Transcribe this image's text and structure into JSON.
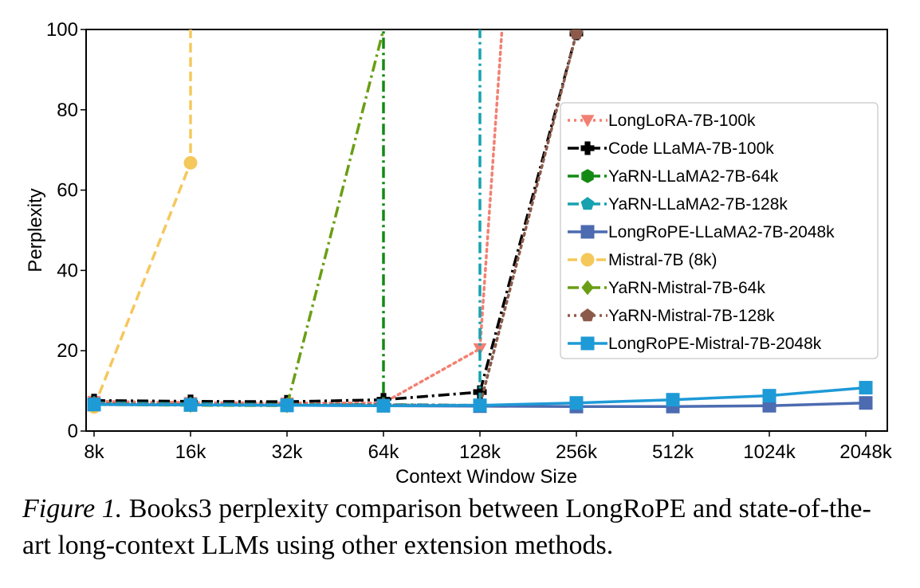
{
  "chart_data": {
    "type": "line",
    "title": "",
    "xlabel": "Context Window Size",
    "ylabel": "Perplexity",
    "x_scale": "log2",
    "categories": [
      "8k",
      "16k",
      "32k",
      "64k",
      "128k",
      "256k",
      "512k",
      "1024k",
      "2048k"
    ],
    "x_values_k": [
      8,
      16,
      32,
      64,
      128,
      256,
      512,
      1024,
      2048
    ],
    "ylim": [
      0,
      100
    ],
    "yticks": [
      0,
      20,
      40,
      60,
      80,
      100
    ],
    "grid": false,
    "legend_position": "center-right",
    "series": [
      {
        "name": "LongLoRA-7B-100k",
        "color": "#f28072",
        "linestyle": "dotted",
        "marker": "triangle-down",
        "x": [
          8,
          16,
          32,
          64,
          128,
          150
        ],
        "y": [
          7.4,
          7.1,
          7.0,
          7.0,
          20.5,
          100
        ]
      },
      {
        "name": "Code LLaMA-7B-100k",
        "color": "#000000",
        "linestyle": "dashdot",
        "marker": "plus",
        "x": [
          8,
          16,
          32,
          64,
          128,
          256
        ],
        "y": [
          7.6,
          7.4,
          7.3,
          7.8,
          9.7,
          99
        ]
      },
      {
        "name": "YaRN-LLaMA2-7B-64k",
        "color": "#138a13",
        "linestyle": "dashdot",
        "marker": "hexagon",
        "x": [
          8,
          16,
          32,
          64,
          64
        ],
        "y": [
          6.9,
          6.7,
          6.6,
          6.5,
          100
        ]
      },
      {
        "name": "YaRN-LLaMA2-7B-128k",
        "color": "#17a2b0",
        "linestyle": "dashdot",
        "marker": "pentagon",
        "x": [
          8,
          16,
          32,
          64,
          128,
          128
        ],
        "y": [
          7.0,
          6.8,
          6.6,
          6.6,
          6.4,
          100
        ]
      },
      {
        "name": "LongRoPE-LLaMA2-7B-2048k",
        "color": "#4c6bb0",
        "linestyle": "solid",
        "marker": "square",
        "x": [
          8,
          16,
          32,
          64,
          128,
          256,
          512,
          1024,
          2048
        ],
        "y": [
          6.6,
          6.5,
          6.4,
          6.3,
          6.2,
          6.1,
          6.1,
          6.3,
          7.0
        ]
      },
      {
        "name": "Mistral-7B (8k)",
        "color": "#f5c85c",
        "linestyle": "dashed",
        "marker": "circle",
        "x": [
          8,
          16,
          16
        ],
        "y": [
          6.0,
          66.8,
          100
        ]
      },
      {
        "name": "YaRN-Mistral-7B-64k",
        "color": "#6a9e14",
        "linestyle": "dashdot",
        "marker": "diamond",
        "x": [
          8,
          16,
          32,
          64
        ],
        "y": [
          6.6,
          6.4,
          6.3,
          100
        ]
      },
      {
        "name": "YaRN-Mistral-7B-128k",
        "color": "#8b5a4a",
        "linestyle": "dotted",
        "marker": "pentagon",
        "x": [
          8,
          16,
          32,
          64,
          128,
          256
        ],
        "y": [
          6.8,
          6.6,
          6.5,
          6.5,
          6.4,
          99
        ]
      },
      {
        "name": "LongRoPE-Mistral-7B-2048k",
        "color": "#1e9ad6",
        "linestyle": "solid",
        "marker": "square",
        "x": [
          8,
          16,
          32,
          64,
          128,
          256,
          512,
          1024,
          2048
        ],
        "y": [
          6.6,
          6.5,
          6.4,
          6.3,
          6.4,
          7.0,
          7.8,
          8.8,
          10.8
        ]
      }
    ]
  },
  "caption": {
    "label": "Figure 1.",
    "text": " Books3 perplexity comparison between LongRoPE and state-of-the-art long-context LLMs using other extension methods."
  }
}
